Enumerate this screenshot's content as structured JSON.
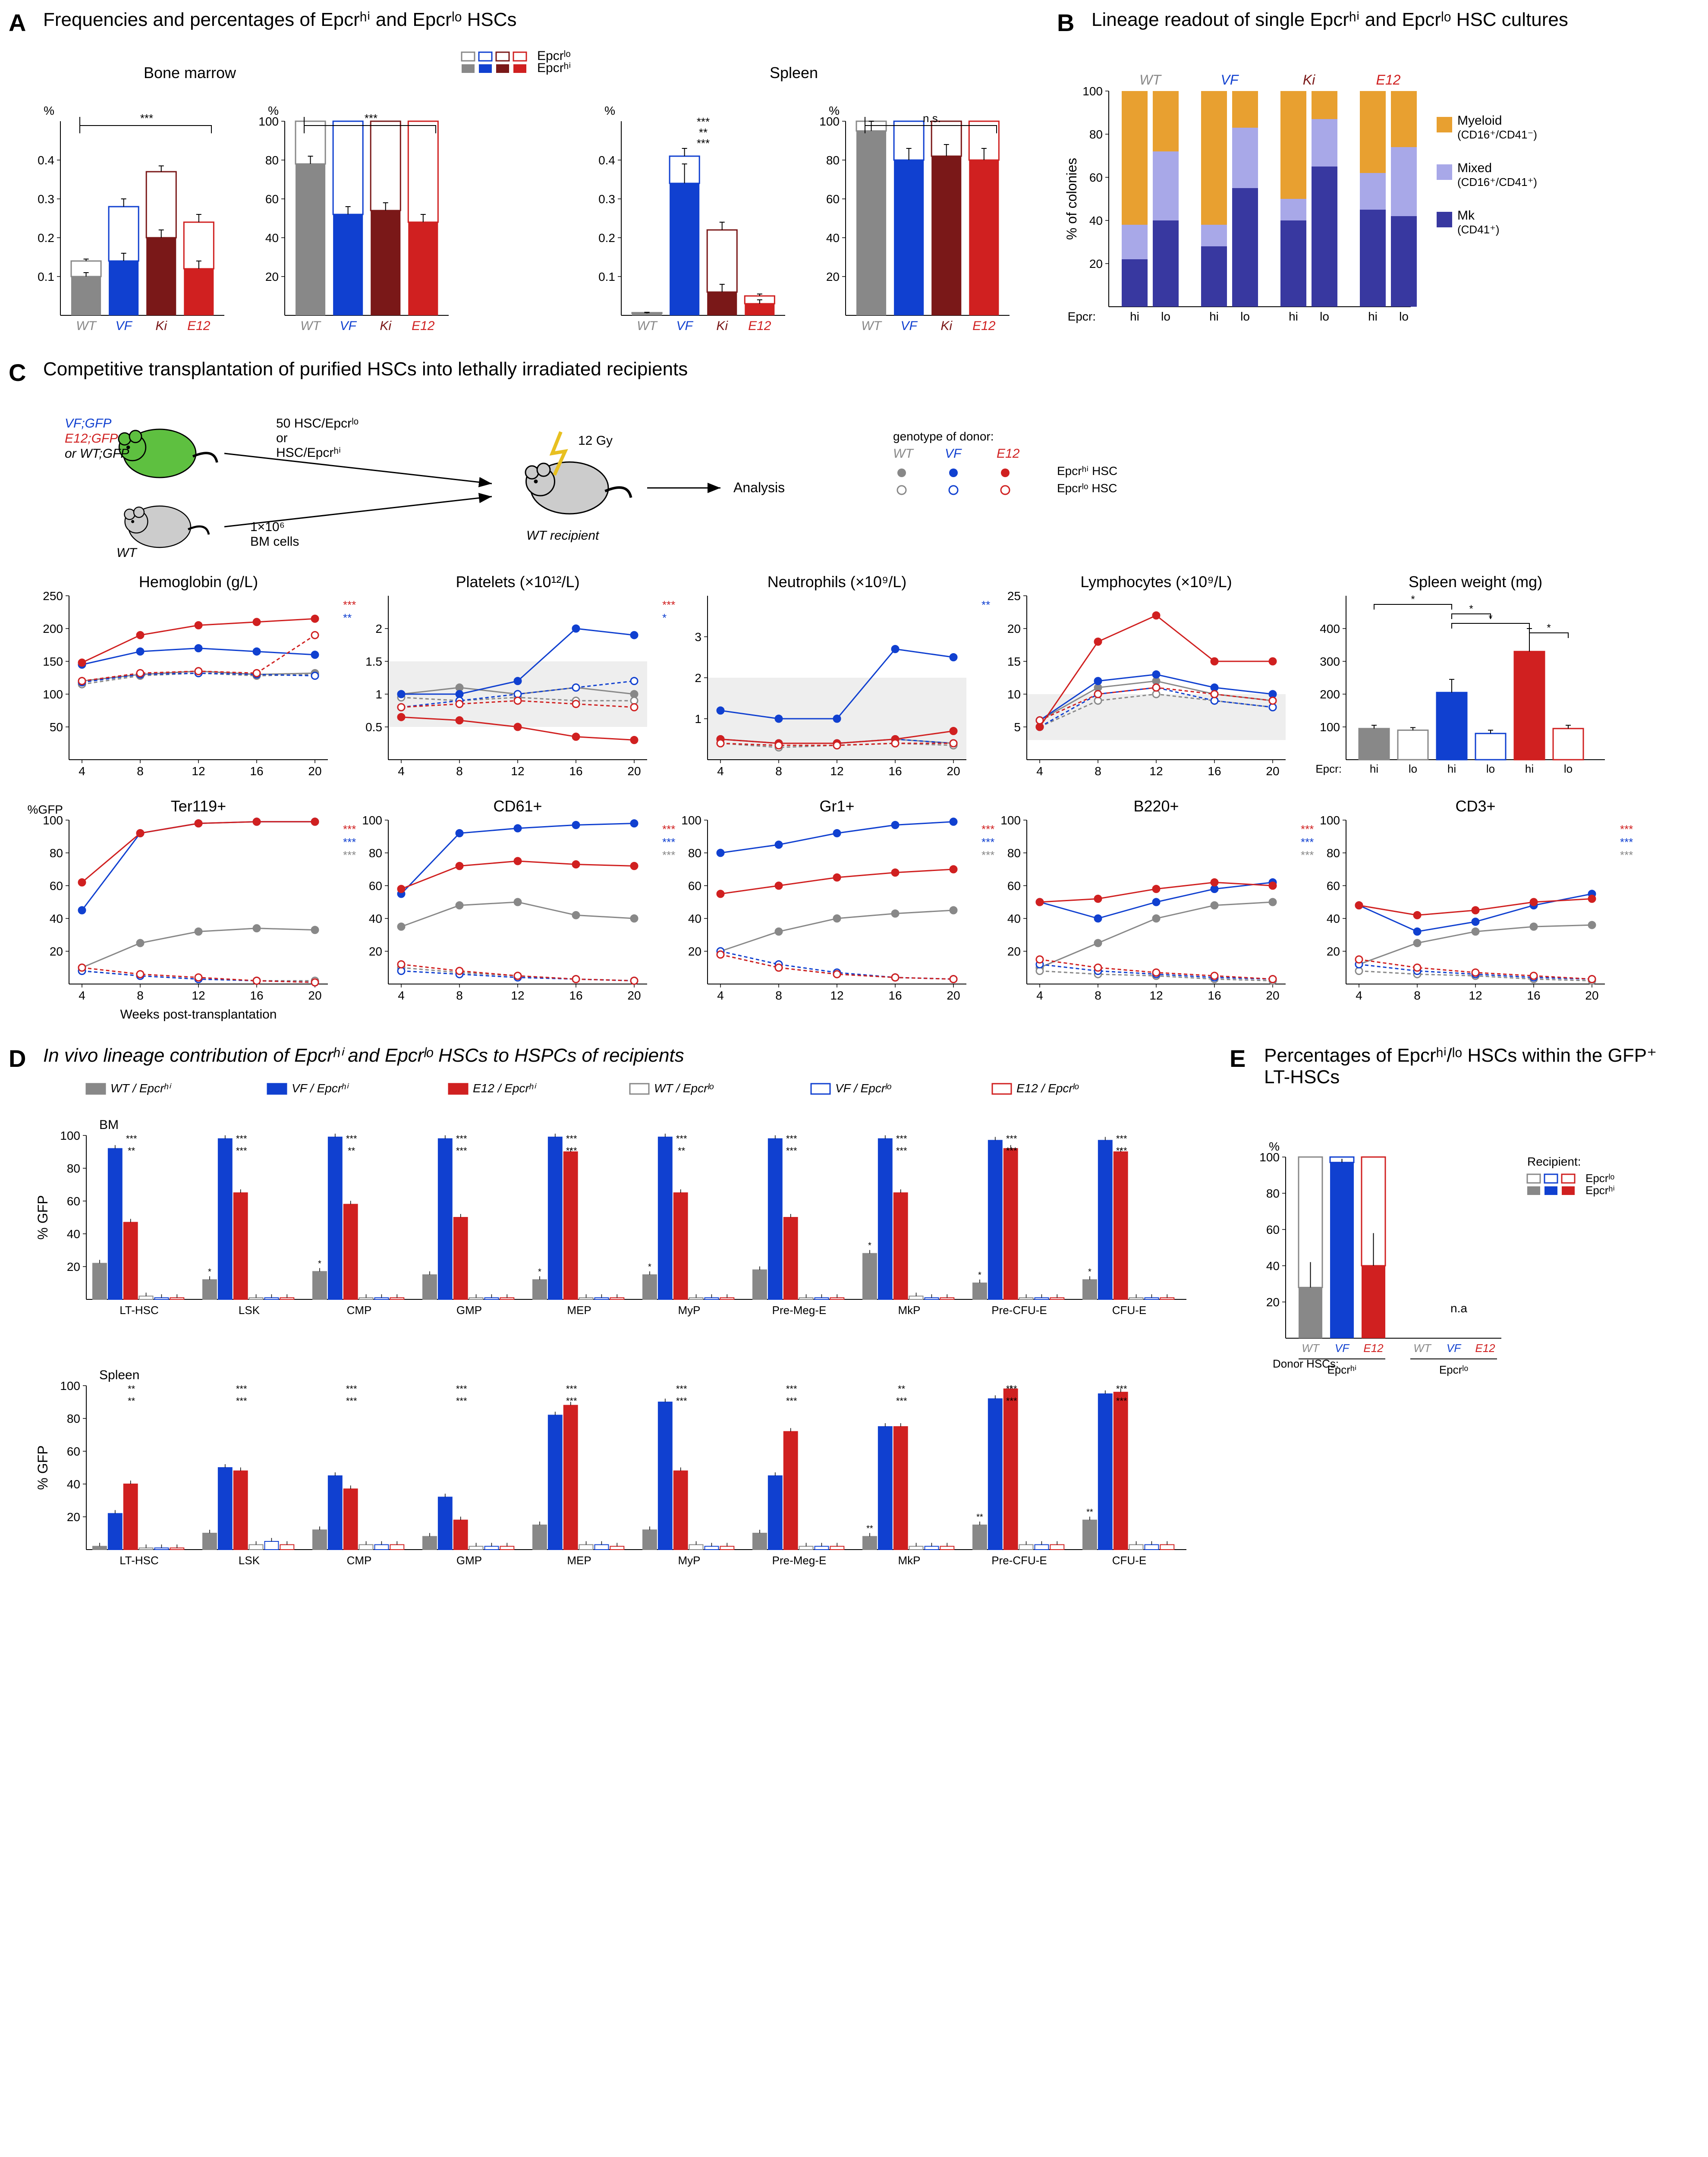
{
  "colors": {
    "wt": "#888888",
    "wt_fill": "#bbbbbb",
    "vf": "#1040d0",
    "ki": "#7a1818",
    "e12": "#d02020",
    "myeloid": "#e8a030",
    "mixed": "#a8a8e8",
    "mk": "#3838a0",
    "gray_band": "#eeeeee"
  },
  "panelA": {
    "label": "A",
    "title": "Frequencies and percentages of Epcrʰⁱ and Epcrˡᵒ HSCs",
    "legend_lo": "Epcrˡᵒ",
    "legend_hi": "Epcrʰⁱ",
    "subtitles": [
      "Bone marrow",
      "Spleen"
    ],
    "genotypes": [
      "WT",
      "VF",
      "Ki",
      "E12"
    ],
    "bm_freq": {
      "ylabel": "%",
      "ymax": 0.5,
      "yticks": [
        0.1,
        0.2,
        0.3,
        0.4
      ],
      "hi": [
        0.1,
        0.14,
        0.2,
        0.12
      ],
      "lo": [
        0.04,
        0.14,
        0.17,
        0.12
      ],
      "err_hi": [
        0.01,
        0.02,
        0.02,
        0.02
      ],
      "err_lo": [
        0.005,
        0.02,
        0.015,
        0.02
      ],
      "sig": "***"
    },
    "bm_pct": {
      "ylabel": "%",
      "ymax": 100,
      "yticks": [
        20,
        40,
        60,
        80,
        100
      ],
      "hi": [
        78,
        52,
        54,
        48
      ],
      "lo_to_100": true,
      "err_hi": [
        4,
        4,
        4,
        4
      ],
      "sig": "***"
    },
    "sp_freq": {
      "ylabel": "%",
      "ymax": 0.5,
      "yticks": [
        0.1,
        0.2,
        0.3,
        0.4
      ],
      "hi": [
        0.005,
        0.34,
        0.06,
        0.03
      ],
      "lo": [
        0.002,
        0.07,
        0.16,
        0.02
      ],
      "err_hi": [
        0.002,
        0.05,
        0.02,
        0.01
      ],
      "err_lo": [
        0.001,
        0.02,
        0.02,
        0.005
      ],
      "sigs": [
        "***",
        "**",
        "***"
      ]
    },
    "sp_pct": {
      "ylabel": "%",
      "ymax": 100,
      "yticks": [
        20,
        40,
        60,
        80,
        100
      ],
      "hi": [
        95,
        80,
        82,
        80
      ],
      "lo_to_100": true,
      "err_hi": [
        5,
        6,
        6,
        6
      ],
      "sig": "n.s."
    }
  },
  "panelB": {
    "label": "B",
    "title": "Lineage readout of single Epcrʰⁱ and Epcrˡᵒ HSC cultures",
    "genotypes": [
      "WT",
      "VF",
      "Ki",
      "E12"
    ],
    "xlabel": "Epcr:",
    "xvals": [
      "hi",
      "lo",
      "hi",
      "lo",
      "hi",
      "lo",
      "hi",
      "lo"
    ],
    "ylabel": "% of colonies",
    "legend": [
      {
        "key": "Myeloid",
        "detail": "(CD16⁺/CD41⁻)"
      },
      {
        "key": "Mixed",
        "detail": "(CD16⁺/CD41⁺)"
      },
      {
        "key": "Mk",
        "detail": "(CD41⁺)"
      }
    ],
    "data": [
      {
        "mk": 22,
        "mixed": 16,
        "myeloid": 62
      },
      {
        "mk": 40,
        "mixed": 32,
        "myeloid": 28
      },
      {
        "mk": 28,
        "mixed": 10,
        "myeloid": 62
      },
      {
        "mk": 55,
        "mixed": 28,
        "myeloid": 17
      },
      {
        "mk": 40,
        "mixed": 10,
        "myeloid": 50
      },
      {
        "mk": 65,
        "mixed": 22,
        "myeloid": 13
      },
      {
        "mk": 45,
        "mixed": 17,
        "myeloid": 38
      },
      {
        "mk": 42,
        "mixed": 32,
        "myeloid": 26
      }
    ]
  },
  "panelC": {
    "label": "C",
    "title": "Competitive transplantation of purified HSCs into lethally irradiated recipients",
    "diagram": {
      "donor_labels": [
        "VF;GFP",
        "E12;GFP",
        "or WT;GFP"
      ],
      "hsc_text": "50 HSC/Epcrˡᵒ\nor\nHSC/Epcrʰⁱ",
      "competitor": "WT",
      "bm_cells": "1×10⁶\nBM cells",
      "irradiation": "12 Gy",
      "recipient": "WT recipient",
      "analysis": "Analysis",
      "legend_title": "genotype of donor:",
      "legend_genotypes": [
        "WT",
        "VF",
        "E12"
      ],
      "legend_hi": "Epcrʰⁱ HSC",
      "legend_lo": "Epcrˡᵒ HSC"
    },
    "xlabel": "Weeks post-transplantation",
    "xticks": [
      4,
      8,
      12,
      16,
      20
    ],
    "row1": [
      {
        "title": "Hemoglobin (g/L)",
        "ymax": 250,
        "yticks": [
          50,
          100,
          150,
          200,
          250
        ],
        "wt_hi": [
          120,
          130,
          135,
          130,
          132
        ],
        "wt_lo": [
          115,
          128,
          132,
          128,
          130
        ],
        "vf_hi": [
          145,
          165,
          170,
          165,
          160
        ],
        "vf_lo": [
          118,
          130,
          132,
          130,
          128
        ],
        "e12_hi": [
          148,
          190,
          205,
          210,
          215
        ],
        "e12_lo": [
          120,
          132,
          135,
          132,
          190
        ],
        "sig": {
          "vf": "**",
          "e12": "***"
        }
      },
      {
        "title": "Platelets (×10¹²/L)",
        "ymax": 2.5,
        "yticks": [
          0.5,
          1.0,
          1.5,
          2.0
        ],
        "band": [
          0.5,
          1.5
        ],
        "wt_hi": [
          1.0,
          1.1,
          1.0,
          1.1,
          1.0
        ],
        "wt_lo": [
          0.95,
          0.9,
          0.95,
          0.9,
          0.9
        ],
        "vf_hi": [
          1.0,
          1.0,
          1.2,
          2.0,
          1.9
        ],
        "vf_lo": [
          0.8,
          0.9,
          1.0,
          1.1,
          1.2
        ],
        "e12_hi": [
          0.65,
          0.6,
          0.5,
          0.35,
          0.3
        ],
        "e12_lo": [
          0.8,
          0.85,
          0.9,
          0.85,
          0.8
        ],
        "sig": {
          "vf": "*",
          "e12": "***"
        }
      },
      {
        "title": "Neutrophils (×10⁹/L)",
        "ymax": 4,
        "yticks": [
          1,
          2,
          3
        ],
        "band": [
          0,
          2
        ],
        "wt_hi": [
          0.5,
          0.4,
          0.4,
          0.5,
          0.4
        ],
        "wt_lo": [
          0.4,
          0.3,
          0.35,
          0.4,
          0.35
        ],
        "vf_hi": [
          1.2,
          1.0,
          1.0,
          2.7,
          2.5
        ],
        "vf_lo": [
          0.5,
          0.4,
          0.4,
          0.5,
          0.4
        ],
        "e12_hi": [
          0.5,
          0.4,
          0.4,
          0.5,
          0.7
        ],
        "e12_lo": [
          0.4,
          0.35,
          0.35,
          0.4,
          0.4
        ],
        "sig": {
          "vf": "**"
        }
      },
      {
        "title": "Lymphocytes (×10⁹/L)",
        "ymax": 25,
        "yticks": [
          5,
          10,
          15,
          20,
          25
        ],
        "band": [
          3,
          10
        ],
        "wt_hi": [
          6,
          11,
          12,
          10,
          9
        ],
        "wt_lo": [
          5,
          9,
          10,
          9,
          8
        ],
        "vf_hi": [
          6,
          12,
          13,
          11,
          10
        ],
        "vf_lo": [
          5,
          10,
          11,
          9,
          8
        ],
        "e12_hi": [
          5,
          18,
          22,
          15,
          15
        ],
        "e12_lo": [
          6,
          10,
          11,
          10,
          9
        ]
      }
    ],
    "spleen": {
      "title": "Spleen weight (mg)",
      "ymax": 500,
      "yticks": [
        100,
        200,
        300,
        400
      ],
      "labels": [
        "hi",
        "lo",
        "hi",
        "lo",
        "hi",
        "lo"
      ],
      "xlabel": "Epcr:",
      "vals": [
        95,
        90,
        205,
        80,
        330,
        95
      ],
      "err": [
        10,
        8,
        40,
        10,
        70,
        10
      ],
      "colors": [
        "wt",
        "wt",
        "vf",
        "vf",
        "e12",
        "e12"
      ],
      "filled": [
        true,
        false,
        true,
        false,
        true,
        false
      ],
      "sigs": [
        {
          "from": 0,
          "to": 2,
          "label": "*"
        },
        {
          "from": 2,
          "to": 3,
          "label": "*"
        },
        {
          "from": 2,
          "to": 4,
          "label": "*"
        },
        {
          "from": 4,
          "to": 5,
          "label": "*"
        }
      ]
    },
    "row2": [
      {
        "title": "Ter119+",
        "ylabel": "%GFP",
        "ymax": 100,
        "yticks": [
          20,
          40,
          60,
          80,
          100
        ],
        "wt_hi": [
          10,
          25,
          32,
          34,
          33
        ],
        "wt_lo": [
          8,
          5,
          3,
          2,
          2
        ],
        "vf_hi": [
          45,
          92,
          98,
          99,
          99
        ],
        "vf_lo": [
          8,
          5,
          3,
          2,
          1
        ],
        "e12_hi": [
          62,
          92,
          98,
          99,
          99
        ],
        "e12_lo": [
          10,
          6,
          4,
          2,
          1
        ],
        "sig": {
          "wt": "***",
          "vf": "***",
          "e12": "***"
        }
      },
      {
        "title": "CD61+",
        "ymax": 100,
        "yticks": [
          20,
          40,
          60,
          80,
          100
        ],
        "wt_hi": [
          35,
          48,
          50,
          42,
          40
        ],
        "wt_lo": [
          10,
          7,
          5,
          3,
          2
        ],
        "vf_hi": [
          55,
          92,
          95,
          97,
          98
        ],
        "vf_lo": [
          8,
          6,
          4,
          3,
          2
        ],
        "e12_hi": [
          58,
          72,
          75,
          73,
          72
        ],
        "e12_lo": [
          12,
          8,
          5,
          3,
          2
        ],
        "sig": {
          "wt": "***",
          "vf": "***",
          "e12": "***"
        }
      },
      {
        "title": "Gr1+",
        "ymax": 100,
        "yticks": [
          20,
          40,
          60,
          80,
          100
        ],
        "wt_hi": [
          20,
          32,
          40,
          43,
          45
        ],
        "wt_lo": [
          18,
          10,
          6,
          4,
          3
        ],
        "vf_hi": [
          80,
          85,
          92,
          97,
          99
        ],
        "vf_lo": [
          20,
          12,
          7,
          4,
          3
        ],
        "e12_hi": [
          55,
          60,
          65,
          68,
          70
        ],
        "e12_lo": [
          18,
          10,
          6,
          4,
          3
        ],
        "sig": {
          "wt": "***",
          "vf": "***",
          "e12": "***"
        }
      },
      {
        "title": "B220+",
        "ymax": 100,
        "yticks": [
          20,
          40,
          60,
          80,
          100
        ],
        "wt_hi": [
          10,
          25,
          40,
          48,
          50
        ],
        "wt_lo": [
          8,
          6,
          5,
          3,
          2
        ],
        "vf_hi": [
          50,
          40,
          50,
          58,
          62
        ],
        "vf_lo": [
          12,
          8,
          6,
          4,
          3
        ],
        "e12_hi": [
          50,
          52,
          58,
          62,
          60
        ],
        "e12_lo": [
          15,
          10,
          7,
          5,
          3
        ],
        "sig": {
          "wt": "***",
          "vf": "***",
          "e12": "***"
        }
      },
      {
        "title": "CD3+",
        "ymax": 100,
        "yticks": [
          20,
          40,
          60,
          80,
          100
        ],
        "wt_hi": [
          12,
          25,
          32,
          35,
          36
        ],
        "wt_lo": [
          8,
          6,
          5,
          3,
          2
        ],
        "vf_hi": [
          48,
          32,
          38,
          48,
          55
        ],
        "vf_lo": [
          12,
          8,
          6,
          4,
          3
        ],
        "e12_hi": [
          48,
          42,
          45,
          50,
          52
        ],
        "e12_lo": [
          15,
          10,
          7,
          5,
          3
        ],
        "sig": {
          "wt": "***",
          "vf": "***",
          "e12": "***"
        }
      }
    ]
  },
  "panelD": {
    "label": "D",
    "title": "In vivo lineage contribution of Epcrʰⁱ and Epcrˡᵒ HSCs to HSPCs of recipients",
    "legend": [
      "WT / Epcrʰⁱ",
      "VF / Epcrʰⁱ",
      "E12 / Epcrʰⁱ",
      "WT / Epcrˡᵒ",
      "VF / Epcrˡᵒ",
      "E12 / Epcrˡᵒ"
    ],
    "ylabel": "% GFP",
    "categories": [
      "LT-HSC",
      "LSK",
      "CMP",
      "GMP",
      "MEP",
      "MyP",
      "Pre-Meg-E",
      "MkP",
      "Pre-CFU-E",
      "CFU-E"
    ],
    "bm": {
      "title": "BM",
      "wt_hi": [
        22,
        12,
        17,
        15,
        12,
        15,
        18,
        28,
        10,
        12
      ],
      "vf_hi": [
        92,
        98,
        99,
        98,
        99,
        99,
        98,
        98,
        97,
        97
      ],
      "e12_hi": [
        47,
        65,
        58,
        50,
        90,
        65,
        50,
        65,
        92,
        90
      ],
      "wt_lo": [
        2,
        1,
        1,
        1,
        1,
        1,
        1,
        2,
        1,
        1
      ],
      "vf_lo": [
        1,
        1,
        1,
        1,
        1,
        1,
        1,
        1,
        1,
        1
      ],
      "e12_lo": [
        1,
        1,
        1,
        1,
        1,
        1,
        1,
        1,
        1,
        1
      ],
      "sigs_top": [
        "***",
        "***",
        "***",
        "***",
        "***",
        "***",
        "***",
        "***",
        "***",
        "***"
      ],
      "sigs_mid": [
        "**",
        "***",
        "**",
        "***",
        "***",
        "**",
        "***",
        "***",
        "***",
        "***"
      ],
      "wt_sig": [
        "",
        "*",
        "*",
        "",
        "*",
        "*",
        "",
        "*",
        "*",
        "*"
      ],
      "na_idx": [
        3
      ]
    },
    "spleen": {
      "title": "Spleen",
      "wt_hi": [
        2,
        10,
        12,
        8,
        15,
        12,
        10,
        8,
        15,
        18
      ],
      "vf_hi": [
        22,
        50,
        45,
        32,
        82,
        90,
        45,
        75,
        92,
        95
      ],
      "e12_hi": [
        40,
        48,
        37,
        18,
        88,
        48,
        72,
        75,
        98,
        96
      ],
      "wt_lo": [
        1,
        3,
        3,
        2,
        3,
        3,
        2,
        2,
        3,
        3
      ],
      "vf_lo": [
        1,
        5,
        3,
        2,
        3,
        2,
        2,
        2,
        3,
        3
      ],
      "e12_lo": [
        1,
        3,
        3,
        2,
        2,
        2,
        2,
        2,
        3,
        3
      ],
      "sigs_top": [
        "**",
        "***",
        "***",
        "***",
        "***",
        "***",
        "***",
        "**",
        "***",
        "***"
      ],
      "sigs_mid": [
        "**",
        "***",
        "***",
        "***",
        "***",
        "***",
        "***",
        "***",
        "***",
        "***"
      ],
      "wt_sig": [
        "",
        "",
        "",
        "",
        "",
        "",
        "",
        "**",
        "**",
        "**"
      ]
    }
  },
  "panelE": {
    "label": "E",
    "title": "Percentages of Epcrʰⁱ/ˡᵒ HSCs within the GFP⁺ LT-HSCs",
    "ylabel": "%",
    "legend_title": "Recipient:",
    "legend_lo": "Epcrˡᵒ",
    "legend_hi": "Epcrʰⁱ",
    "xlabel": "Donor HSCs:",
    "groups": [
      "Epcrʰⁱ",
      "Epcrˡᵒ"
    ],
    "genotypes": [
      "WT",
      "VF",
      "E12",
      "WT",
      "VF",
      "E12"
    ],
    "hi": [
      28,
      97,
      40,
      0,
      0,
      0
    ],
    "lo_to_100": true,
    "err": [
      14,
      2,
      18,
      0,
      0,
      0
    ],
    "na_text": "n.a"
  }
}
